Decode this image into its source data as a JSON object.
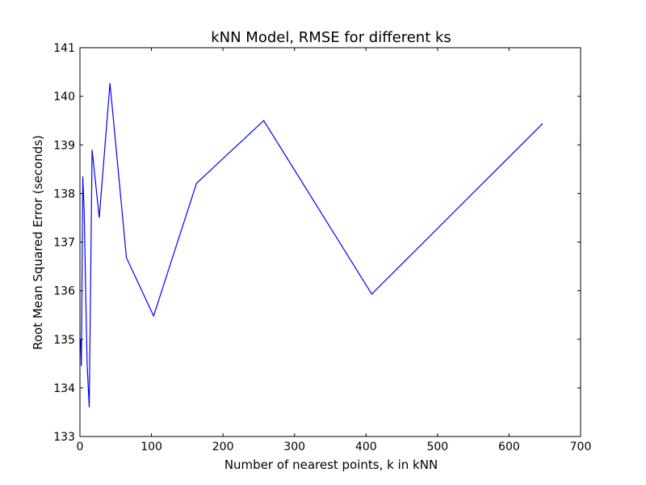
{
  "chart_data": {
    "type": "line",
    "title": "kNN Model, RMSE for different ks",
    "xlabel": "Number of nearest points, k in kNN",
    "ylabel": "Root Mean Squared Error (seconds)",
    "xlim": [
      0,
      700
    ],
    "ylim": [
      133,
      141
    ],
    "xticks": [
      0,
      100,
      200,
      300,
      400,
      500,
      600,
      700
    ],
    "yticks": [
      133,
      134,
      135,
      136,
      137,
      138,
      139,
      140,
      141
    ],
    "xtick_labels": [
      "0",
      "100",
      "200",
      "300",
      "400",
      "500",
      "600",
      "700"
    ],
    "ytick_labels": [
      "133",
      "134",
      "135",
      "136",
      "137",
      "138",
      "139",
      "140",
      "141"
    ],
    "grid": false,
    "series": [
      {
        "color": "#0000ff",
        "x": [
          1,
          2,
          4,
          6,
          8,
          10,
          13,
          17,
          27,
          42,
          65,
          103,
          163,
          257,
          408,
          647
        ],
        "y": [
          135.0,
          134.45,
          138.35,
          137.6,
          136.0,
          134.5,
          133.6,
          138.9,
          137.5,
          140.27,
          136.68,
          135.48,
          138.21,
          139.5,
          135.93,
          139.44
        ]
      }
    ]
  }
}
